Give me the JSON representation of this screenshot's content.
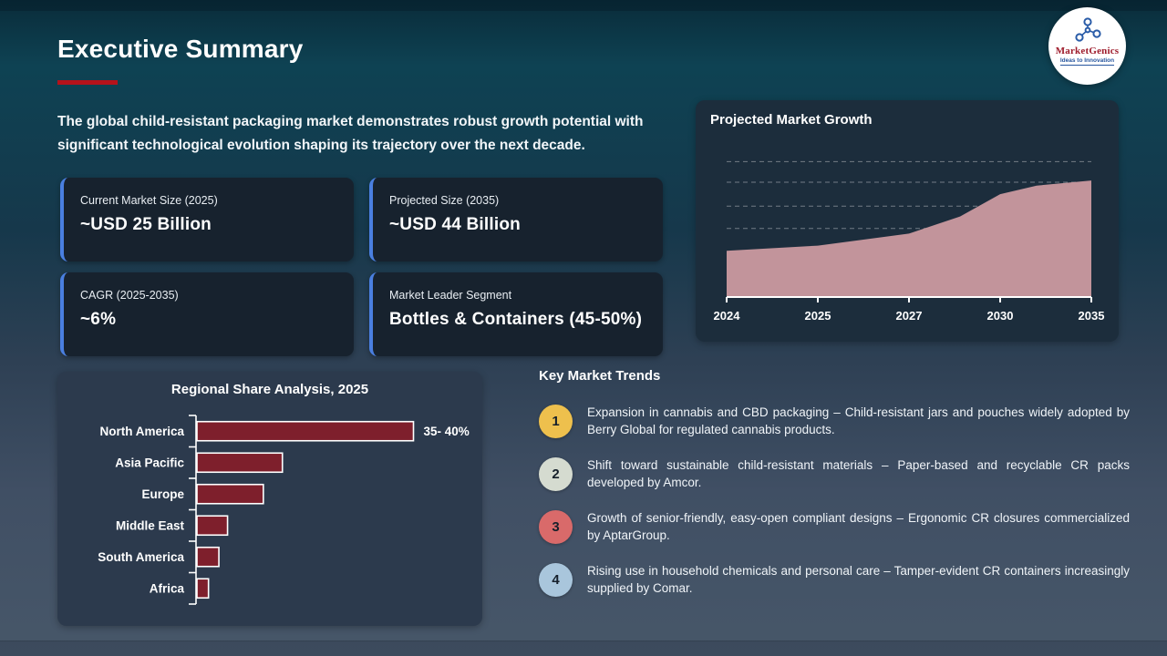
{
  "page": {
    "title": "Executive Summary",
    "intro": "The global child-resistant packaging market demonstrates robust growth potential with significant technological evolution shaping its trajectory over the next decade."
  },
  "logo": {
    "brand": "MarketGenics",
    "tagline": "Ideas to Innovation"
  },
  "stat_cards": [
    {
      "label": "Current Market Size (2025)",
      "value": "~USD 25 Billion"
    },
    {
      "label": "Projected Size (2035)",
      "value": "~USD 44 Billion"
    },
    {
      "label": "CAGR (2025-2035)",
      "value": "~6%"
    },
    {
      "label": "Market Leader Segment",
      "value": "Bottles & Containers (45-50%)"
    }
  ],
  "chart_data": [
    {
      "type": "area",
      "title": "Projected Market Growth",
      "x": [
        "2024",
        "2025",
        "2027",
        "2030",
        "2035"
      ],
      "values": [
        23.5,
        25,
        28.5,
        40,
        44
      ],
      "shape_points": [
        [
          0,
          23.5
        ],
        [
          0.25,
          25
        ],
        [
          0.5,
          28.5
        ],
        [
          0.64,
          33.5
        ],
        [
          0.75,
          40
        ],
        [
          0.85,
          42.5
        ],
        [
          1,
          44
        ]
      ],
      "ylim": [
        10,
        52
      ],
      "gridline_values": [
        30,
        36.5,
        43.5,
        49.5
      ],
      "grid": "horizontal-dashed",
      "legend": "none",
      "fill_color": "#c2949b"
    },
    {
      "type": "bar",
      "title": "Regional Share Analysis, 2025",
      "orientation": "horizontal",
      "categories": [
        "North America",
        "Asia Pacific",
        "Europe",
        "Middle East",
        "South America",
        "Africa"
      ],
      "values": [
        37.5,
        14.8,
        11.5,
        5.3,
        3.8,
        2.0
      ],
      "xlim": [
        0,
        45
      ],
      "data_labels": [
        "35- 40%",
        "",
        "",
        "",
        "",
        ""
      ],
      "bar_color": "#7e1f2c"
    }
  ],
  "trends": {
    "heading": "Key Market Trends",
    "items": [
      {
        "number": "1",
        "color": "#eec04d",
        "text": "Expansion in cannabis and CBD packaging – Child-resistant jars and pouches widely adopted by Berry Global for regulated cannabis products."
      },
      {
        "number": "2",
        "color": "#d5dbd0",
        "text": "Shift toward sustainable child-resistant materials – Paper-based and recyclable CR packs developed by Amcor."
      },
      {
        "number": "3",
        "color": "#d96a6a",
        "text": "Growth of senior-friendly, easy-open compliant designs – Ergonomic CR closures commercialized by AptarGroup."
      },
      {
        "number": "4",
        "color": "#a9c6dc",
        "text": "Rising use in household chemicals and personal care – Tamper-evident CR containers increasingly supplied by Comar."
      }
    ]
  },
  "colors": {
    "accent_red": "#b5121b",
    "card_accent_blue": "#4a7fe0",
    "area_fill": "#c2949b",
    "bar_fill": "#7e1f2c"
  }
}
